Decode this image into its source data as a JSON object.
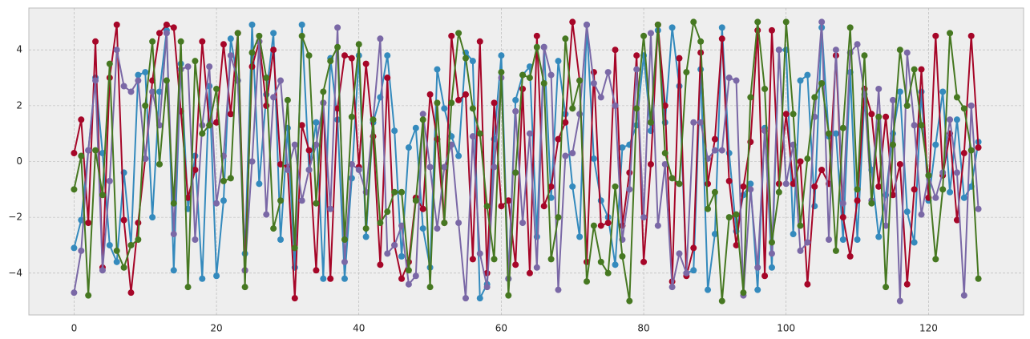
{
  "chart_data": {
    "type": "line",
    "x": [
      0,
      1,
      2,
      3,
      4,
      5,
      6,
      7,
      8,
      9,
      10,
      11,
      12,
      13,
      14,
      15,
      16,
      17,
      18,
      19,
      20,
      21,
      22,
      23,
      24,
      25,
      26,
      27,
      28,
      29,
      30,
      31,
      32,
      33,
      34,
      35,
      36,
      37,
      38,
      39,
      40,
      41,
      42,
      43,
      44,
      45,
      46,
      47,
      48,
      49,
      50,
      51,
      52,
      53,
      54,
      55,
      56,
      57,
      58,
      59,
      60,
      61,
      62,
      63,
      64,
      65,
      66,
      67,
      68,
      69,
      70,
      71,
      72,
      73,
      74,
      75,
      76,
      77,
      78,
      79,
      80,
      81,
      82,
      83,
      84,
      85,
      86,
      87,
      88,
      89,
      90,
      91,
      92,
      93,
      94,
      95,
      96,
      97,
      98,
      99,
      100,
      101,
      102,
      103,
      104,
      105,
      106,
      107,
      108,
      109,
      110,
      111,
      112,
      113,
      114,
      115,
      116,
      117,
      118,
      119,
      120,
      121,
      122,
      123,
      124,
      125,
      126,
      127
    ],
    "series": [
      {
        "color": "#348ABD",
        "values": [
          -3.1,
          -2.1,
          0.4,
          3.0,
          0.3,
          -3.0,
          -3.6,
          -0.4,
          -3.0,
          3.1,
          3.2,
          -2.0,
          2.5,
          4.7,
          -3.9,
          3.5,
          -1.7,
          0.2,
          -4.2,
          2.7,
          -4.1,
          -1.4,
          4.4,
          2.9,
          -3.3,
          4.9,
          -0.8,
          2.4,
          4.6,
          -2.8,
          1.2,
          -3.8,
          4.9,
          -0.3,
          1.4,
          -4.2,
          3.7,
          1.5,
          -4.2,
          -0.6,
          3.8,
          -2.7,
          1.4,
          2.3,
          3.8,
          1.1,
          -3.4,
          0.5,
          1.2,
          -2.4,
          -3.8,
          3.3,
          1.9,
          0.9,
          0.2,
          3.9,
          3.6,
          -4.9,
          -4.4,
          0.8,
          3.8,
          -4.2,
          2.2,
          3.1,
          3.4,
          -2.7,
          4.1,
          -1.3,
          3.6,
          1.7,
          -0.9,
          -2.7,
          4.9,
          0.1,
          -1.4,
          -2.0,
          -3.7,
          0.5,
          0.6,
          1.3,
          3.8,
          1.1,
          4.7,
          1.4,
          4.8,
          2.7,
          -4.0,
          -3.9,
          3.3,
          -4.6,
          -2.6,
          4.8,
          0.3,
          -2.5,
          -1.2,
          -0.8,
          -4.6,
          1.2,
          -3.8,
          4.0,
          4.0,
          -2.6,
          2.9,
          3.1,
          -1.6,
          4.8,
          0.9,
          1.0,
          -2.8,
          3.2,
          -2.8,
          2.2,
          -0.3,
          -2.7,
          -1.2,
          1.0,
          2.5,
          -1.8,
          -2.9,
          2.5,
          -1.4,
          0.6,
          2.5,
          -1.1,
          1.5,
          -1.3,
          -0.9,
          0.7
        ]
      },
      {
        "color": "#A60628",
        "values": [
          0.3,
          1.5,
          -2.2,
          4.3,
          -3.8,
          3.0,
          4.9,
          -2.1,
          -4.7,
          -2.2,
          0.1,
          2.9,
          4.6,
          4.9,
          4.8,
          1.8,
          -1.3,
          -0.3,
          4.3,
          1.3,
          1.4,
          4.2,
          1.7,
          4.6,
          -3.9,
          3.4,
          4.3,
          2.0,
          4.0,
          -0.1,
          -0.2,
          -4.9,
          1.3,
          0.4,
          -3.9,
          2.1,
          -4.2,
          1.9,
          3.8,
          3.7,
          -0.2,
          3.5,
          0.9,
          -3.7,
          3.0,
          -3.0,
          -4.2,
          -3.6,
          -1.3,
          -1.7,
          2.4,
          0.8,
          -2.2,
          4.5,
          2.2,
          2.4,
          -3.5,
          4.3,
          -4.0,
          2.1,
          -1.6,
          -1.4,
          -3.7,
          2.6,
          -4.0,
          4.5,
          -1.6,
          -0.9,
          0.8,
          1.4,
          5.0,
          2.9,
          -3.6,
          3.2,
          -2.3,
          -2.2,
          4.0,
          -2.3,
          -0.4,
          3.8,
          -3.6,
          -0.1,
          4.9,
          2.0,
          -4.3,
          3.7,
          -4.1,
          -3.1,
          3.9,
          -0.8,
          0.8,
          4.4,
          -0.7,
          -3.0,
          -0.9,
          0.7,
          4.7,
          -4.1,
          4.7,
          -0.8,
          1.7,
          -0.8,
          0.0,
          -4.4,
          -0.9,
          -0.3,
          -0.8,
          3.8,
          -2.0,
          -3.4,
          -1.4,
          2.6,
          1.7,
          -0.9,
          1.6,
          -1.2,
          -0.1,
          -4.4,
          -1.0,
          3.3,
          -1.3,
          4.5,
          -0.5,
          1.0,
          -2.1,
          0.3,
          4.5,
          0.5
        ]
      },
      {
        "color": "#7A68A6",
        "values": [
          -4.7,
          -3.2,
          0.4,
          2.9,
          -3.9,
          -0.7,
          4.0,
          2.7,
          2.5,
          2.9,
          0.1,
          2.5,
          1.3,
          4.6,
          -2.6,
          3.3,
          3.4,
          -2.8,
          1.3,
          3.4,
          -1.5,
          0.2,
          3.8,
          2.9,
          -3.9,
          0.0,
          4.3,
          -1.9,
          2.3,
          2.9,
          -0.3,
          0.6,
          -1.4,
          -0.3,
          0.6,
          2.1,
          -1.7,
          4.8,
          -3.6,
          -0.1,
          -0.3,
          -1.1,
          1.5,
          4.4,
          -3.3,
          -3.0,
          -2.3,
          -4.4,
          -4.1,
          1.7,
          -0.2,
          -2.4,
          -0.2,
          0.6,
          -2.2,
          -4.9,
          0.9,
          -3.3,
          -4.5,
          -0.2,
          3.0,
          -4.2,
          1.8,
          -2.2,
          1.0,
          -3.8,
          4.1,
          3.1,
          -4.6,
          0.2,
          0.3,
          1.7,
          4.9,
          2.8,
          2.3,
          3.2,
          2.0,
          -2.8,
          -1.0,
          3.3,
          -2.0,
          4.6,
          -2.3,
          -0.1,
          -4.5,
          -3.3,
          -4.0,
          1.4,
          1.4,
          0.1,
          0.4,
          0.4,
          3.0,
          2.9,
          -4.8,
          -1.0,
          -3.8,
          1.1,
          -3.3,
          4.0,
          -0.8,
          0.6,
          -3.2,
          -2.9,
          1.6,
          5.0,
          -2.8,
          4.0,
          -1.5,
          3.9,
          4.2,
          2.4,
          -1.4,
          2.6,
          -2.3,
          2.2,
          -5.0,
          3.9,
          1.3,
          -1.9,
          -0.5,
          -1.3,
          -0.4,
          1.5,
          -0.4,
          -4.8,
          2.0,
          -1.7
        ]
      },
      {
        "color": "#467821",
        "values": [
          -1.0,
          0.2,
          -4.8,
          0.4,
          -1.2,
          3.5,
          -3.2,
          -3.8,
          -3.0,
          -2.8,
          2.0,
          4.3,
          -0.1,
          2.9,
          -1.5,
          4.3,
          -4.5,
          3.6,
          1.0,
          1.3,
          2.6,
          -0.7,
          -0.6,
          4.6,
          -4.5,
          3.9,
          4.5,
          3.0,
          -2.4,
          -1.4,
          2.2,
          -3.1,
          4.5,
          3.8,
          -1.5,
          2.5,
          3.6,
          4.1,
          -2.8,
          1.6,
          4.2,
          -2.4,
          1.5,
          -2.2,
          -1.8,
          -1.1,
          -1.1,
          -3.9,
          -1.4,
          1.5,
          -4.5,
          2.1,
          -2.2,
          2.1,
          4.6,
          3.7,
          1.9,
          1.0,
          -1.6,
          -3.5,
          3.2,
          -4.8,
          -0.4,
          3.1,
          3.0,
          4.1,
          2.8,
          -3.5,
          -2.0,
          4.4,
          1.9,
          2.9,
          -4.3,
          -2.3,
          -3.6,
          -4.0,
          -0.9,
          -3.4,
          -5.0,
          1.9,
          4.5,
          1.4,
          4.9,
          0.3,
          -0.6,
          -0.8,
          3.2,
          5.0,
          4.3,
          -1.7,
          -1.1,
          -5.0,
          -2.0,
          -1.9,
          -4.7,
          2.3,
          5.0,
          2.6,
          -2.9,
          -1.1,
          5.0,
          1.7,
          -2.3,
          0.1,
          2.3,
          2.8,
          1.0,
          -3.2,
          1.2,
          4.8,
          -1.0,
          3.8,
          -1.5,
          1.6,
          -4.5,
          0.6,
          4.0,
          2.0,
          3.3,
          1.3,
          -0.5,
          -3.5,
          -1.0,
          4.6,
          2.3,
          1.9,
          0.4,
          -4.2
        ]
      }
    ],
    "xlim": [
      -6.35,
      133.35
    ],
    "ylim": [
      -5.5,
      5.5
    ],
    "xticks": [
      0,
      20,
      40,
      60,
      80,
      100,
      120
    ],
    "yticks": [
      {
        "value": -4,
        "label": "−4"
      },
      {
        "value": -2,
        "label": "−2"
      },
      0,
      2,
      4
    ],
    "grid": true
  }
}
